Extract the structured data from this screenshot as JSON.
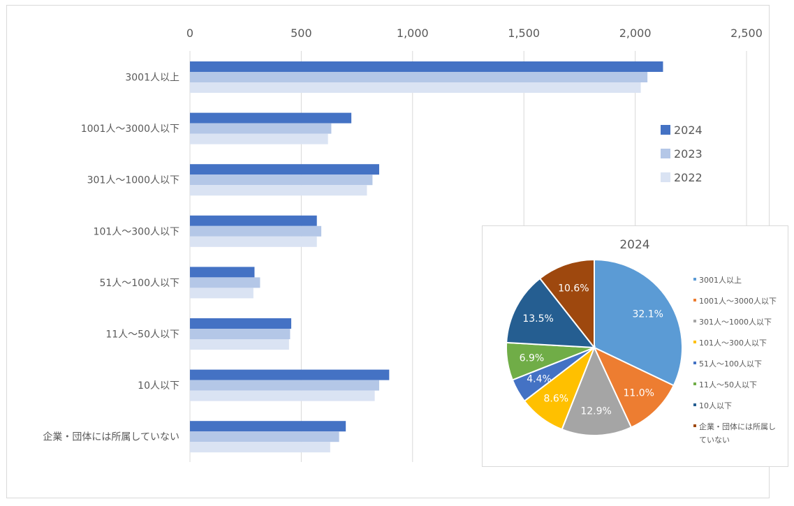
{
  "chart_data": [
    {
      "type": "bar",
      "orientation": "horizontal",
      "categories": [
        "3001人以上",
        "1001人～3000人以下",
        "301人～1000人以下",
        "101人～300人以下",
        "51人～100人以下",
        "11人～50人以下",
        "10人以下",
        "企業・団体には所属していない"
      ],
      "series": [
        {
          "name": "2024",
          "values": [
            2125,
            725,
            850,
            570,
            290,
            455,
            895,
            700
          ]
        },
        {
          "name": "2023",
          "values": [
            2055,
            635,
            820,
            590,
            315,
            450,
            850,
            670
          ]
        },
        {
          "name": "2022",
          "values": [
            2025,
            620,
            795,
            570,
            285,
            445,
            830,
            630
          ]
        }
      ],
      "colors": [
        "#4472c4",
        "#b4c7e7",
        "#dae3f3"
      ],
      "xlim": [
        0,
        2500
      ],
      "ticks": [
        "0",
        "500",
        "1,000",
        "1,500",
        "2,000",
        "2,500"
      ],
      "tick_values": [
        0,
        500,
        1000,
        1500,
        2000,
        2500
      ],
      "grid": true,
      "legend": "right"
    },
    {
      "type": "pie",
      "title": "2024",
      "labels": [
        "3001人以上",
        "1001人～3000人以下",
        "301人～1000人以下",
        "101人～300人以下",
        "51人～100人以下",
        "11人～50人以下",
        "10人以下",
        "企業・団体には所属していない"
      ],
      "legend_lines": [
        [
          "3001人以上"
        ],
        [
          "1001人～3000人以下"
        ],
        [
          "301人～1000人以下"
        ],
        [
          "101人～300人以下"
        ],
        [
          "51人～100人以下"
        ],
        [
          "11人～50人以下"
        ],
        [
          "10人以下"
        ],
        [
          "企業・団体には所属し",
          "ていない"
        ]
      ],
      "values": [
        32.1,
        11.0,
        12.9,
        8.6,
        4.4,
        6.9,
        13.5,
        10.6
      ],
      "value_labels": [
        "32.1%",
        "11.0%",
        "12.9%",
        "8.6%",
        "4.4%",
        "6.9%",
        "13.5%",
        "10.6%"
      ],
      "colors": [
        "#5b9bd5",
        "#ed7d31",
        "#a5a5a5",
        "#ffc000",
        "#4472c4",
        "#70ad47",
        "#255e91",
        "#9e480e"
      ],
      "legend": "right"
    }
  ]
}
